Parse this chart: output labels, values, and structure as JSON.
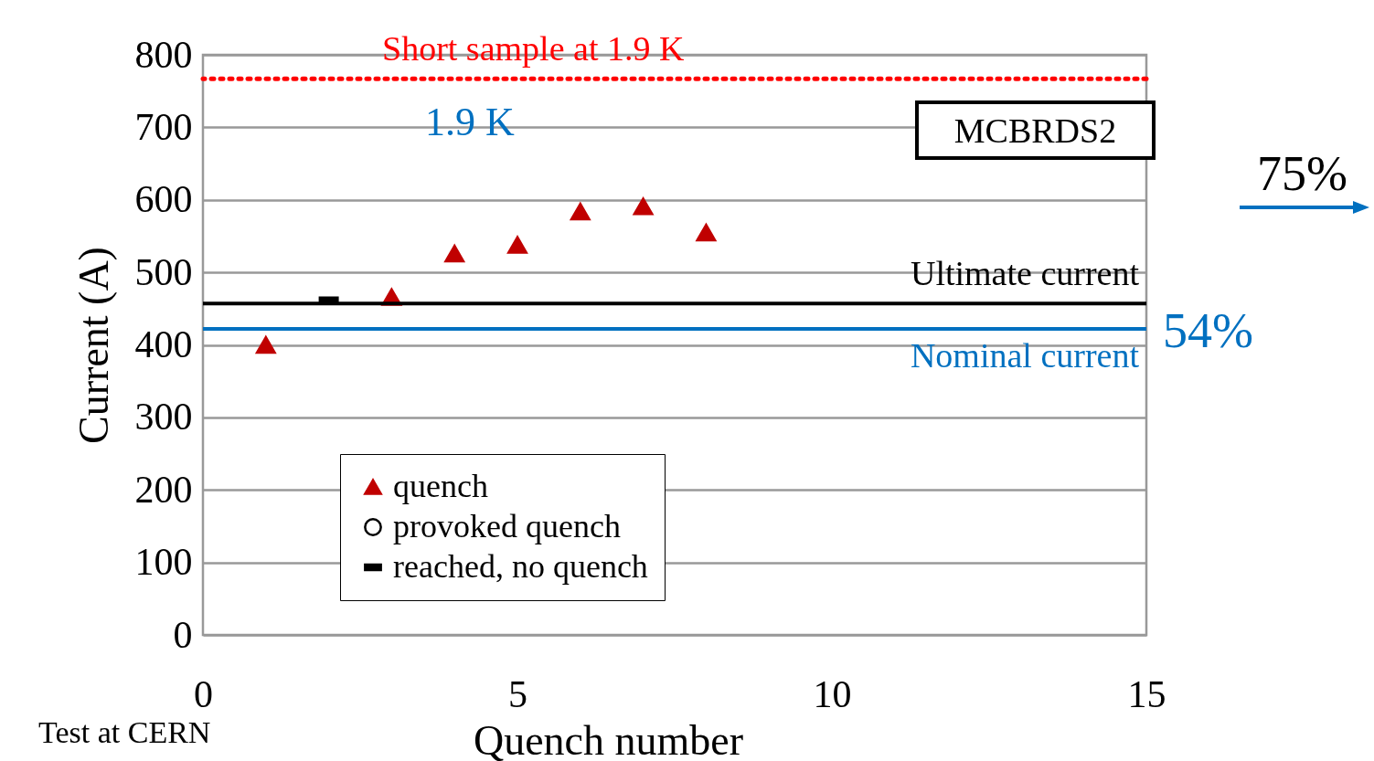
{
  "chart_data": {
    "type": "scatter",
    "xlabel": "Quench number",
    "ylabel": "Current (A)",
    "xlim": [
      0,
      15
    ],
    "xticks": [
      0,
      5,
      10,
      15
    ],
    "ylim": [
      0,
      800
    ],
    "yticks": [
      0,
      100,
      200,
      300,
      400,
      500,
      600,
      700,
      800
    ],
    "grid": "y",
    "legend": "bottom left",
    "series": [
      {
        "name": "quench",
        "color": "#c00000",
        "marker": "triangle",
        "x": [
          1,
          3,
          4,
          5,
          6,
          7,
          8
        ],
        "values": [
          400,
          466,
          526,
          538,
          584,
          591,
          555
        ]
      },
      {
        "name": "provoked quench",
        "color": "#000000",
        "marker": "circle"
      },
      {
        "name": "reached, no quench",
        "color": "#000000",
        "marker": "square",
        "x": [
          2
        ],
        "values": [
          461
        ]
      }
    ],
    "ref_lines": [
      {
        "axis": "y",
        "value": 767,
        "label": "Short sample at 1.9 K",
        "color": "#ff0000",
        "line_style": "dotted"
      },
      {
        "axis": "y",
        "value": 457,
        "label": "Ultimate current",
        "color": "#000000",
        "line_style": "solid"
      },
      {
        "axis": "y",
        "value": 422,
        "label": "Nominal current",
        "color": "#0070c0",
        "line_style": "solid"
      }
    ],
    "annotations": [
      "1.9 K",
      "MCBRDS2",
      "75%",
      "54%",
      "Test at CERN"
    ]
  }
}
